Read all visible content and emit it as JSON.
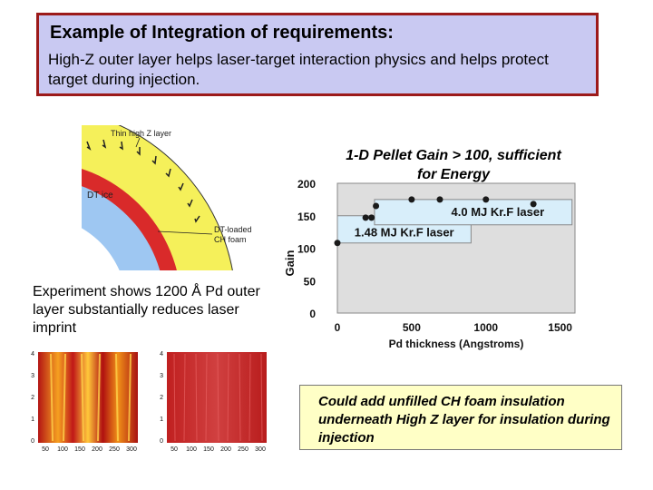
{
  "header": {
    "title": "Example of Integration of requirements:",
    "subtitle": "High-Z outer layer helps laser-target interaction physics and helps protect target during injection."
  },
  "diagram": {
    "thin_layer_label": "Thin high Z layer",
    "dt_ice_label": "DT ice",
    "foam_label_line1": "DT-loaded",
    "foam_label_line2": "CH foam",
    "colors": {
      "outer_layer": "#f5f05a",
      "foam": "#d92a2a",
      "ice": "#9ec7f2"
    }
  },
  "experiment_text": "Experiment shows 1200 Å Pd outer layer substantially reduces laser imprint",
  "sim_images": {
    "y_ticks": [
      "4",
      "3",
      "2",
      "1",
      "0"
    ],
    "x_ticks": [
      "50",
      "100",
      "150",
      "200",
      "250",
      "300"
    ]
  },
  "chart_title": "1-D Pellet Gain > 100, sufficient for Energy",
  "note": "Could add unfilled CH foam insulation underneath High Z layer for insulation during injection",
  "chart_data": {
    "type": "scatter",
    "xlabel": "Pd thickness (Angstroms)",
    "ylabel": "Gain",
    "xlim": [
      0,
      1600
    ],
    "ylim": [
      0,
      200
    ],
    "x_ticks": [
      0,
      500,
      1000,
      1500
    ],
    "y_ticks": [
      0,
      50,
      100,
      150,
      200
    ],
    "series": [
      {
        "name": "4.0 MJ Kr.F laser",
        "points": [
          [
            260,
            165
          ],
          [
            500,
            175
          ],
          [
            690,
            175
          ],
          [
            1000,
            175
          ],
          [
            1320,
            168
          ]
        ]
      },
      {
        "name": "1.48 MJ Kr.F laser",
        "points": [
          [
            0,
            108
          ],
          [
            190,
            147
          ],
          [
            230,
            147
          ]
        ]
      }
    ]
  }
}
